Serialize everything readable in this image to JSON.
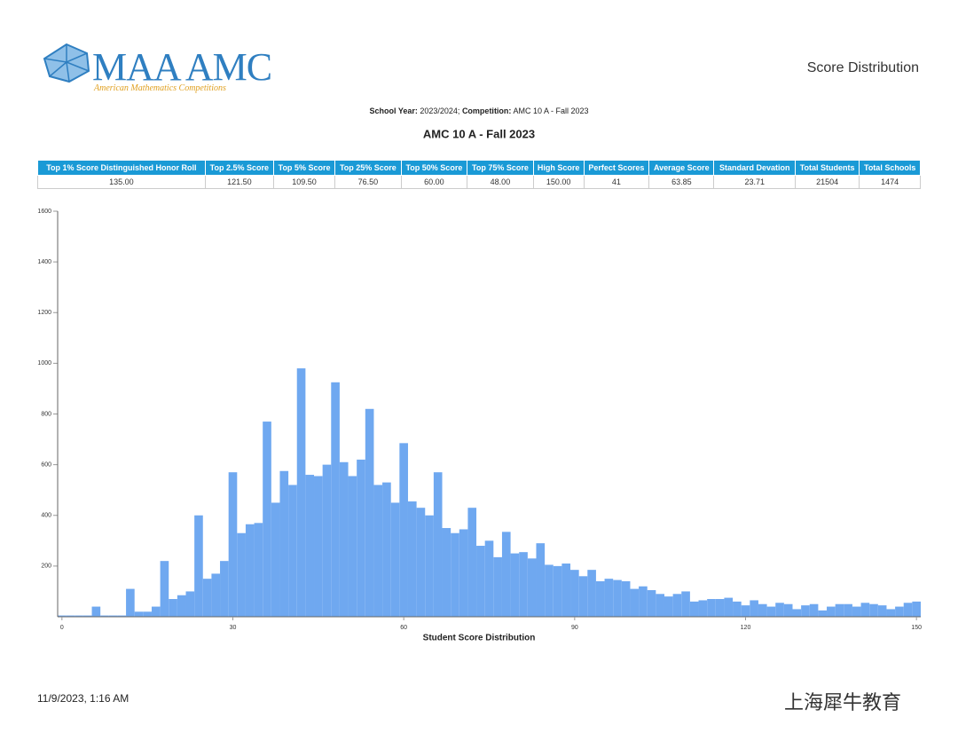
{
  "header": {
    "logo_main": "MAA AMC",
    "logo_sub": "American Mathematics Competitions",
    "title": "Score Distribution"
  },
  "meta": {
    "school_year_label": "School Year:",
    "school_year": "2023/2024;",
    "competition_label": "Competition:",
    "competition": "AMC 10 A - Fall 2023"
  },
  "summary_table": {
    "headers": [
      "Top 1% Score Distinguished Honor Roll",
      "Top 2.5% Score",
      "Top 5% Score",
      "Top 25% Score",
      "Top 50% Score",
      "Top 75% Score",
      "High Score",
      "Perfect Scores",
      "Average Score",
      "Standard Devation",
      "Total Students",
      "Total Schools"
    ],
    "rows": [
      [
        "135.00",
        "121.50",
        "109.50",
        "76.50",
        "60.00",
        "48.00",
        "150.00",
        "41",
        "63.85",
        "23.71",
        "21504",
        "1474"
      ]
    ]
  },
  "chart_data": {
    "type": "bar",
    "title": "AMC 10 A - Fall 2023",
    "x_label": "Student Score Distribution",
    "color": "#6fa8f0",
    "x": [
      0,
      1.5,
      3,
      4.5,
      6,
      7.5,
      9,
      10.5,
      12,
      13.5,
      15,
      16.5,
      18,
      19.5,
      21,
      22.5,
      24,
      25.5,
      27,
      28.5,
      30,
      31.5,
      33,
      34.5,
      36,
      37.5,
      39,
      40.5,
      42,
      43.5,
      45,
      46.5,
      48,
      49.5,
      51,
      52.5,
      54,
      55.5,
      57,
      58.5,
      60,
      61.5,
      63,
      64.5,
      66,
      67.5,
      69,
      70.5,
      72,
      73.5,
      75,
      76.5,
      78,
      79.5,
      81,
      82.5,
      84,
      85.5,
      87,
      88.5,
      90,
      91.5,
      93,
      94.5,
      96,
      97.5,
      99,
      100.5,
      102,
      103.5,
      105,
      106.5,
      108,
      109.5,
      111,
      112.5,
      114,
      115.5,
      117,
      118.5,
      120,
      121.5,
      123,
      124.5,
      126,
      127.5,
      129,
      130.5,
      132,
      133.5,
      135,
      136.5,
      138,
      139.5,
      141,
      142.5,
      144,
      145.5,
      147,
      148.5,
      150
    ],
    "values": [
      5,
      5,
      5,
      5,
      40,
      5,
      5,
      5,
      110,
      20,
      20,
      40,
      220,
      70,
      85,
      100,
      400,
      150,
      170,
      220,
      570,
      330,
      365,
      370,
      770,
      450,
      575,
      520,
      980,
      560,
      555,
      600,
      925,
      610,
      555,
      620,
      820,
      520,
      530,
      450,
      685,
      455,
      430,
      400,
      570,
      350,
      330,
      345,
      430,
      280,
      300,
      235,
      335,
      250,
      255,
      230,
      290,
      205,
      200,
      210,
      185,
      160,
      185,
      140,
      150,
      145,
      140,
      110,
      120,
      105,
      90,
      80,
      90,
      100,
      60,
      65,
      70,
      70,
      75,
      60,
      45,
      65,
      50,
      40,
      55,
      50,
      30,
      45,
      50,
      25,
      40,
      50,
      50,
      40,
      55,
      50,
      45,
      30,
      40,
      55,
      60
    ],
    "xlim": [
      -0.75,
      150.75
    ],
    "xticks": [
      0,
      30,
      60,
      90,
      120,
      150
    ],
    "ylim": [
      0,
      1600
    ],
    "yticks": [
      200,
      400,
      600,
      800,
      1000,
      1200,
      1400,
      1600
    ]
  },
  "footer": {
    "timestamp": "11/9/2023, 1:16 AM",
    "watermark": "上海犀牛教育"
  }
}
